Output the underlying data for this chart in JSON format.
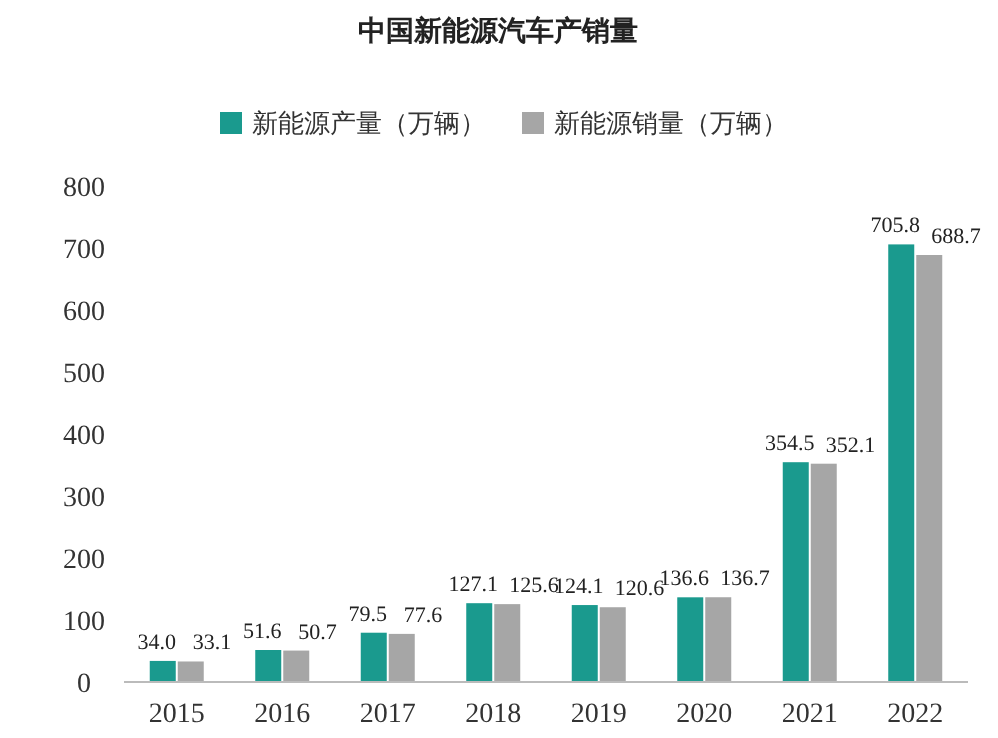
{
  "chart_data": {
    "type": "bar",
    "title": "中国新能源汽车产销量",
    "categories": [
      "2015",
      "2016",
      "2017",
      "2018",
      "2019",
      "2020",
      "2021",
      "2022"
    ],
    "series": [
      {
        "name": "新能源产量（万辆）",
        "color": "#1a9a8e",
        "values": [
          34.0,
          51.6,
          79.5,
          127.1,
          124.1,
          136.6,
          354.5,
          705.8
        ],
        "value_labels": [
          "34.0",
          "51.6",
          "79.5",
          "127.1",
          "124.1",
          "136.6",
          "354.5",
          "705.8"
        ]
      },
      {
        "name": "新能源销量（万辆）",
        "color": "#a6a6a6",
        "values": [
          33.1,
          50.7,
          77.6,
          125.6,
          120.6,
          136.7,
          352.1,
          688.7
        ],
        "value_labels": [
          "33.1",
          "50.7",
          "77.6",
          "125.6",
          "120.6",
          "136.7",
          "352.1",
          "688.7"
        ]
      }
    ],
    "ylim": [
      0,
      800
    ],
    "yticks": [
      0,
      100,
      200,
      300,
      400,
      500,
      600,
      700,
      800
    ],
    "legend": "top",
    "grid": false
  }
}
